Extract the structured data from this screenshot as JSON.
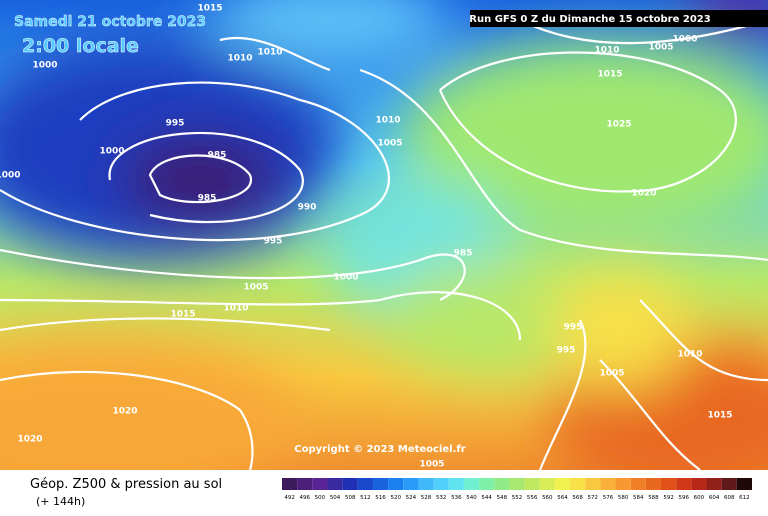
{
  "header": {
    "date": "Samedi 21 octobre 2023",
    "time": "2:00 locale",
    "run": "Run GFS 0 Z du Dimanche 15 octobre 2023"
  },
  "copyright": "Copyright © 2023 Meteociel.fr",
  "footer": {
    "title": "Géop. Z500 & pression au sol",
    "lead": "(+ 144h)"
  },
  "isobar_labels": [
    1015,
    1000,
    1010,
    1010,
    1000,
    1000,
    995,
    985,
    985,
    990,
    995,
    1010,
    1005,
    985,
    1000,
    1005,
    1010,
    1015,
    1020,
    1020,
    1010,
    1005,
    1000,
    1015,
    1025,
    1020,
    995,
    995,
    1005,
    1010,
    1015,
    1005
  ],
  "scale": {
    "values": [
      492,
      496,
      500,
      504,
      508,
      512,
      516,
      520,
      524,
      528,
      532,
      536,
      540,
      544,
      548,
      552,
      556,
      560,
      564,
      568,
      572,
      576,
      580,
      584,
      588,
      592,
      596,
      600,
      604,
      608,
      612
    ],
    "colors": [
      "#3c1a5c",
      "#4b1f7a",
      "#5a2496",
      "#3a2aa0",
      "#2030b4",
      "#1a48cc",
      "#1a64e0",
      "#1a80f0",
      "#2a9cf8",
      "#40b8fa",
      "#50d0fa",
      "#60e4f0",
      "#70f0d0",
      "#80f0a8",
      "#90ec88",
      "#a8e870",
      "#c0e860",
      "#d8ec58",
      "#f0f050",
      "#f8e048",
      "#f8c840",
      "#f8b038",
      "#f89830",
      "#f08028",
      "#e86820",
      "#e05018",
      "#d03818",
      "#b82818",
      "#902018",
      "#601818",
      "#200808"
    ]
  }
}
